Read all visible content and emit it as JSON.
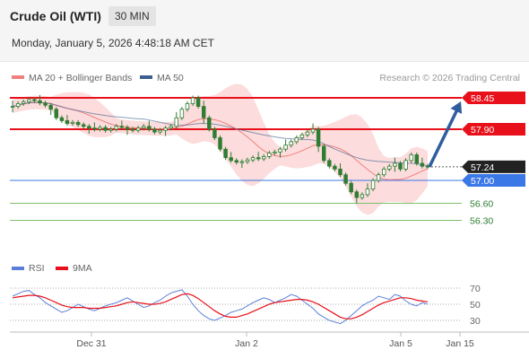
{
  "header": {
    "title": "Crude Oil (WTI)",
    "timeframe": "30 MIN",
    "datetime": "Monday, January 5, 2026 4:48:18 AM CET"
  },
  "legend": {
    "ma20": "MA 20 + Bollinger Bands",
    "ma50": "MA 50",
    "credit": "Research © 2026 Trading Central",
    "rsi": "RSI",
    "ma9": "9MA"
  },
  "colors": {
    "candle": "#2e7d32",
    "resistance": "#e8101a",
    "pivot": "#3b78e7",
    "support": "#7fbf6b",
    "ma20": "#f08080",
    "ma50": "#3b5f8f",
    "band": "#fcd6d6",
    "arrow": "#2f5d9e",
    "rsi": "#5b7fd8",
    "ma9": "#e8101a"
  },
  "chart_data": [
    {
      "type": "candlestick",
      "y_range": [
        56.15,
        58.75
      ],
      "x_ticks": [
        "Dec 31",
        "Jan 2",
        "Jan 5",
        "Jan 15"
      ],
      "current_price": 57.24,
      "levels": [
        {
          "value": 58.45,
          "kind": "resistance",
          "label": "58.45"
        },
        {
          "value": 57.9,
          "kind": "resistance",
          "label": "57.90"
        },
        {
          "value": 57.0,
          "kind": "pivot",
          "label": "57.00"
        },
        {
          "value": 56.6,
          "kind": "support",
          "label": "56.60"
        },
        {
          "value": 56.3,
          "kind": "support",
          "label": "56.30"
        }
      ],
      "price_label": "57.24",
      "forecast_target": 58.45,
      "closes": [
        58.3,
        58.35,
        58.38,
        58.42,
        58.4,
        58.36,
        58.32,
        58.25,
        58.1,
        58.05,
        58.0,
        58.02,
        57.98,
        57.95,
        57.92,
        57.9,
        57.93,
        57.88,
        57.9,
        57.95,
        57.93,
        57.9,
        57.88,
        57.92,
        57.95,
        57.9,
        57.85,
        57.88,
        57.92,
        57.95,
        58.1,
        58.25,
        58.35,
        58.45,
        58.3,
        58.1,
        57.9,
        57.75,
        57.55,
        57.4,
        57.35,
        57.32,
        57.33,
        57.36,
        57.4,
        57.38,
        57.42,
        57.48,
        57.5,
        57.55,
        57.62,
        57.68,
        57.75,
        57.8,
        57.85,
        57.9,
        57.6,
        57.35,
        57.25,
        57.2,
        57.1,
        56.95,
        56.8,
        56.7,
        56.75,
        56.85,
        57.0,
        57.1,
        57.2,
        57.25,
        57.3,
        57.2,
        57.35,
        57.45,
        57.3,
        57.25,
        57.24
      ],
      "ma20_range": [
        57.3,
        58.3
      ],
      "bands": "MA 20 +/- 2σ",
      "ma50_range": [
        57.3,
        58.2
      ]
    },
    {
      "type": "line",
      "name": "RSI",
      "ticks": [
        70,
        50,
        30
      ],
      "y_range": [
        20,
        80
      ],
      "rsi": [
        60,
        63,
        66,
        67,
        62,
        58,
        52,
        48,
        44,
        40,
        42,
        46,
        50,
        47,
        44,
        42,
        45,
        48,
        50,
        52,
        55,
        58,
        54,
        50,
        46,
        48,
        52,
        55,
        60,
        64,
        66,
        68,
        60,
        50,
        42,
        36,
        32,
        30,
        33,
        36,
        40,
        42,
        44,
        48,
        52,
        55,
        58,
        56,
        52,
        55,
        58,
        62,
        60,
        55,
        50,
        45,
        38,
        34,
        30,
        28,
        26,
        30,
        36,
        42,
        48,
        52,
        55,
        60,
        58,
        56,
        62,
        60,
        54,
        50,
        48,
        52,
        50
      ],
      "ma9": [
        58,
        59,
        60,
        61,
        61,
        60,
        58,
        55,
        52,
        49,
        47,
        46,
        46,
        46,
        45,
        45,
        45,
        46,
        47,
        48,
        50,
        52,
        53,
        52,
        51,
        50,
        50,
        51,
        53,
        56,
        59,
        62,
        63,
        61,
        57,
        52,
        47,
        42,
        38,
        35,
        34,
        34,
        36,
        38,
        41,
        44,
        47,
        50,
        52,
        53,
        54,
        55,
        56,
        56,
        55,
        53,
        50,
        46,
        42,
        38,
        34,
        32,
        32,
        34,
        37,
        41,
        45,
        49,
        52,
        54,
        56,
        58,
        58,
        57,
        55,
        54,
        53
      ]
    }
  ]
}
